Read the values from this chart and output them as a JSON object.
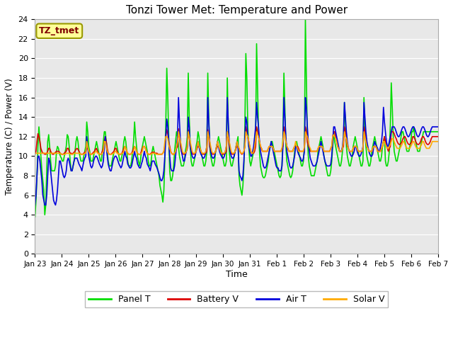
{
  "title": "Tonzi Tower Met: Temperature and Power",
  "xlabel": "Time",
  "ylabel": "Temperature (C) / Power (V)",
  "ylim": [
    0,
    24
  ],
  "yticks": [
    0,
    2,
    4,
    6,
    8,
    10,
    12,
    14,
    16,
    18,
    20,
    22,
    24
  ],
  "xtick_labels": [
    "Jan 23",
    "Jan 24",
    "Jan 25",
    "Jan 26",
    "Jan 27",
    "Jan 28",
    "Jan 29",
    "Jan 30",
    "Jan 31",
    "Feb 1",
    "Feb 2",
    "Feb 3",
    "Feb 4",
    "Feb 5",
    "Feb 6",
    "Feb 7"
  ],
  "bg_color": "#e8e8e8",
  "fig_bg": "#ffffff",
  "grid_color": "#ffffff",
  "legend_label": "TZ_tmet",
  "legend_box_color": "#ffff99",
  "legend_text_color": "#800000",
  "series": {
    "panel_t": {
      "color": "#00dd00",
      "label": "Panel T",
      "linewidth": 1.2
    },
    "battery_v": {
      "color": "#dd0000",
      "label": "Battery V",
      "linewidth": 1.2
    },
    "air_t": {
      "color": "#0000dd",
      "label": "Air T",
      "linewidth": 1.2
    },
    "solar_v": {
      "color": "#ffaa00",
      "label": "Solar V",
      "linewidth": 1.2
    }
  },
  "panel_t": [
    3.8,
    5.5,
    8.0,
    11.0,
    13.0,
    11.5,
    10.0,
    8.5,
    7.5,
    6.5,
    4.0,
    5.0,
    8.5,
    11.5,
    12.2,
    11.0,
    9.5,
    8.5,
    8.5,
    8.5,
    8.5,
    9.0,
    10.5,
    11.0,
    10.8,
    10.3,
    10.0,
    9.8,
    9.5,
    9.5,
    10.0,
    10.5,
    11.0,
    12.2,
    12.0,
    11.0,
    9.5,
    8.5,
    8.5,
    9.0,
    9.5,
    10.5,
    11.5,
    12.0,
    11.5,
    10.5,
    10.0,
    9.5,
    9.5,
    9.5,
    10.0,
    10.5,
    11.0,
    13.5,
    12.5,
    11.0,
    10.5,
    9.5,
    9.5,
    9.5,
    10.0,
    10.5,
    11.0,
    11.5,
    11.0,
    10.5,
    10.0,
    9.5,
    9.5,
    10.5,
    11.5,
    12.5,
    12.5,
    11.5,
    10.5,
    9.5,
    9.0,
    9.0,
    9.0,
    9.5,
    10.0,
    10.5,
    11.0,
    11.5,
    11.0,
    10.5,
    10.0,
    9.5,
    9.5,
    10.0,
    10.5,
    11.5,
    12.0,
    11.5,
    10.5,
    9.5,
    9.0,
    9.0,
    9.0,
    9.5,
    10.5,
    11.5,
    13.5,
    12.0,
    11.0,
    10.0,
    9.5,
    9.0,
    9.5,
    10.5,
    11.0,
    11.5,
    12.0,
    11.5,
    11.0,
    10.5,
    9.5,
    9.0,
    9.0,
    9.5,
    10.5,
    11.0,
    10.5,
    10.0,
    9.5,
    9.0,
    8.5,
    8.0,
    7.0,
    6.5,
    6.0,
    5.3,
    6.5,
    9.5,
    13.5,
    19.0,
    16.0,
    12.0,
    8.5,
    7.5,
    7.5,
    8.0,
    9.0,
    10.5,
    11.5,
    12.5,
    12.0,
    11.0,
    10.0,
    9.5,
    9.0,
    9.0,
    9.0,
    9.5,
    10.5,
    11.0,
    12.0,
    18.5,
    14.0,
    11.0,
    9.5,
    9.0,
    9.0,
    9.5,
    10.0,
    11.0,
    11.5,
    12.5,
    12.0,
    11.0,
    10.5,
    10.0,
    9.5,
    9.0,
    9.0,
    9.5,
    10.5,
    18.5,
    14.0,
    11.0,
    10.0,
    9.5,
    9.0,
    9.0,
    9.5,
    10.5,
    11.0,
    11.5,
    12.0,
    11.5,
    11.0,
    10.5,
    10.0,
    9.5,
    9.0,
    9.0,
    9.5,
    18.0,
    13.0,
    10.5,
    9.5,
    9.0,
    9.0,
    9.5,
    10.0,
    10.5,
    11.0,
    11.5,
    12.0,
    8.0,
    7.0,
    6.5,
    6.0,
    7.0,
    9.0,
    13.0,
    20.5,
    18.0,
    13.0,
    11.0,
    9.5,
    9.0,
    9.5,
    10.0,
    10.5,
    11.5,
    12.0,
    21.5,
    17.0,
    12.5,
    10.5,
    9.0,
    8.5,
    8.0,
    7.8,
    7.8,
    8.0,
    8.5,
    9.0,
    9.5,
    10.5,
    11.0,
    11.5,
    11.5,
    11.0,
    10.5,
    10.0,
    9.5,
    9.0,
    8.5,
    8.0,
    7.8,
    8.0,
    9.0,
    12.0,
    18.5,
    15.0,
    11.0,
    9.5,
    9.0,
    8.5,
    8.0,
    7.8,
    8.0,
    8.5,
    9.5,
    10.5,
    11.0,
    11.5,
    11.0,
    10.5,
    10.0,
    9.5,
    9.0,
    9.0,
    9.5,
    11.0,
    24.0,
    18.0,
    12.0,
    10.0,
    9.0,
    8.5,
    8.0,
    8.0,
    8.0,
    8.0,
    8.5,
    9.0,
    9.5,
    10.5,
    11.0,
    11.5,
    12.0,
    11.5,
    11.0,
    10.0,
    9.5,
    9.0,
    8.5,
    8.0,
    8.0,
    8.0,
    8.5,
    9.5,
    11.0,
    12.5,
    11.5,
    11.0,
    10.5,
    10.0,
    9.5,
    9.0,
    9.0,
    9.5,
    10.5,
    11.5,
    15.5,
    13.5,
    11.0,
    10.0,
    9.5,
    9.0,
    9.0,
    9.5,
    10.0,
    11.0,
    11.5,
    12.0,
    11.5,
    11.0,
    10.5,
    10.0,
    9.5,
    9.0,
    9.0,
    9.5,
    16.0,
    13.0,
    11.0,
    10.0,
    9.5,
    9.0,
    9.0,
    9.5,
    10.5,
    11.0,
    11.5,
    12.0,
    11.5,
    11.0,
    10.5,
    10.0,
    9.5,
    9.5,
    10.0,
    11.0,
    11.5,
    12.0,
    9.5,
    9.0,
    9.0,
    9.5,
    10.5,
    13.0,
    17.5,
    15.0,
    12.0,
    10.5,
    10.0,
    9.5,
    9.5,
    10.0,
    10.5,
    11.0,
    12.0,
    12.5,
    12.5,
    12.0,
    11.5,
    11.0,
    10.5,
    10.5,
    10.5,
    11.0,
    11.5,
    12.5,
    12.5,
    13.0,
    12.0,
    11.5,
    11.0,
    10.5,
    10.5,
    10.5,
    11.0,
    11.5,
    12.0,
    12.5,
    12.5,
    12.5,
    12.5,
    12.5,
    12.5,
    12.5,
    12.5,
    12.5,
    12.5,
    12.5,
    12.5,
    12.5,
    12.5,
    12.5,
    12.5
  ],
  "battery_v": [
    10.2,
    10.5,
    11.5,
    12.3,
    12.0,
    11.5,
    10.8,
    10.5,
    10.3,
    10.3,
    10.2,
    10.2,
    10.3,
    10.5,
    10.8,
    10.8,
    10.5,
    10.3,
    10.2,
    10.2,
    10.3,
    10.4,
    10.5,
    10.5,
    10.5,
    10.4,
    10.3,
    10.2,
    10.2,
    10.2,
    10.3,
    10.4,
    10.5,
    10.8,
    10.8,
    10.5,
    10.3,
    10.3,
    10.2,
    10.3,
    10.4,
    10.5,
    10.7,
    10.8,
    10.7,
    10.5,
    10.3,
    10.2,
    10.2,
    10.2,
    10.3,
    10.4,
    10.5,
    10.8,
    10.8,
    10.5,
    10.3,
    10.2,
    10.2,
    10.3,
    10.4,
    10.5,
    10.7,
    10.8,
    10.5,
    10.3,
    10.2,
    10.2,
    10.2,
    10.5,
    10.8,
    11.5,
    12.0,
    11.5,
    10.8,
    10.3,
    10.2,
    10.2,
    10.2,
    10.3,
    10.4,
    10.5,
    10.8,
    10.8,
    10.5,
    10.3,
    10.2,
    10.2,
    10.2,
    10.3,
    10.5,
    10.8,
    11.0,
    10.8,
    10.5,
    10.3,
    10.2,
    10.2,
    10.2,
    10.3,
    10.5,
    10.8,
    11.0,
    10.8,
    10.5,
    10.3,
    10.2,
    10.2,
    10.2,
    10.5,
    10.8,
    11.0,
    11.0,
    10.8,
    10.5,
    10.3,
    10.2,
    10.2,
    10.2,
    10.3,
    10.4,
    10.4,
    10.4,
    10.3,
    10.3,
    10.3,
    10.2,
    10.2,
    10.2,
    10.2,
    10.2,
    10.3,
    10.5,
    11.0,
    12.1,
    12.7,
    12.3,
    11.5,
    11.0,
    10.5,
    10.3,
    10.2,
    10.2,
    10.3,
    10.5,
    10.8,
    11.0,
    12.8,
    12.0,
    11.0,
    10.5,
    10.3,
    10.2,
    10.2,
    10.3,
    10.5,
    10.8,
    12.7,
    12.0,
    11.0,
    10.5,
    10.3,
    10.2,
    10.2,
    10.3,
    10.5,
    10.8,
    11.0,
    11.0,
    10.8,
    10.5,
    10.3,
    10.2,
    10.2,
    10.2,
    10.3,
    10.5,
    12.7,
    12.0,
    11.0,
    10.5,
    10.3,
    10.2,
    10.2,
    10.3,
    10.5,
    10.8,
    11.0,
    11.0,
    10.8,
    10.5,
    10.3,
    10.2,
    10.2,
    10.2,
    10.3,
    10.5,
    12.5,
    12.0,
    11.0,
    10.5,
    10.3,
    10.2,
    10.2,
    10.3,
    10.5,
    10.8,
    11.0,
    11.0,
    10.8,
    10.5,
    10.3,
    10.2,
    10.3,
    10.5,
    11.0,
    13.0,
    12.5,
    12.0,
    11.5,
    11.0,
    10.5,
    10.3,
    10.3,
    10.3,
    10.5,
    11.0,
    13.0,
    12.5,
    12.0,
    11.5,
    11.0,
    10.8,
    10.5,
    10.5,
    10.5,
    10.5,
    10.5,
    10.5,
    10.8,
    11.0,
    11.0,
    11.0,
    11.0,
    10.8,
    10.5,
    10.5,
    10.5,
    10.5,
    10.5,
    10.5,
    10.5,
    10.5,
    10.8,
    11.0,
    13.0,
    12.5,
    11.5,
    11.0,
    10.8,
    10.5,
    10.5,
    10.5,
    10.5,
    10.5,
    10.8,
    11.0,
    11.0,
    11.0,
    11.0,
    10.8,
    10.5,
    10.5,
    10.5,
    10.5,
    10.5,
    10.8,
    13.0,
    12.5,
    11.5,
    11.0,
    10.8,
    10.5,
    10.5,
    10.5,
    10.5,
    10.5,
    10.5,
    10.5,
    10.5,
    10.8,
    11.0,
    11.0,
    11.0,
    11.0,
    10.8,
    10.5,
    10.5,
    10.5,
    10.5,
    10.5,
    10.5,
    10.5,
    10.8,
    11.0,
    12.0,
    12.5,
    12.5,
    12.0,
    11.5,
    11.0,
    10.8,
    10.5,
    10.5,
    10.5,
    10.8,
    11.0,
    13.0,
    12.5,
    11.5,
    11.0,
    10.8,
    10.5,
    10.5,
    10.5,
    10.5,
    10.8,
    11.0,
    11.0,
    11.0,
    10.8,
    10.5,
    10.5,
    10.5,
    10.5,
    10.5,
    10.8,
    13.0,
    12.5,
    11.5,
    11.0,
    10.8,
    10.5,
    10.5,
    10.5,
    10.5,
    10.8,
    11.0,
    11.0,
    11.0,
    10.8,
    10.5,
    10.5,
    10.5,
    10.5,
    10.8,
    11.0,
    11.5,
    12.0,
    11.5,
    11.0,
    10.8,
    10.5,
    10.8,
    11.0,
    12.5,
    12.5,
    12.5,
    12.3,
    12.0,
    11.8,
    11.5,
    11.3,
    11.2,
    11.2,
    11.3,
    11.5,
    11.8,
    12.0,
    12.0,
    11.8,
    11.5,
    11.3,
    11.2,
    11.2,
    11.3,
    11.5,
    12.0,
    12.0,
    11.8,
    11.5,
    11.3,
    11.2,
    11.2,
    11.3,
    11.5,
    11.8,
    12.0,
    12.0,
    11.8,
    11.5,
    11.3,
    11.2,
    11.2,
    11.3,
    11.5,
    11.8,
    12.0,
    12.0,
    12.0,
    12.0,
    12.0,
    12.0,
    12.0
  ],
  "air_t": [
    5.0,
    6.0,
    8.0,
    10.0,
    10.0,
    9.5,
    8.5,
    7.5,
    6.0,
    5.5,
    5.0,
    5.0,
    6.0,
    8.0,
    9.8,
    9.5,
    8.5,
    7.5,
    6.5,
    5.5,
    5.2,
    5.0,
    5.5,
    6.5,
    8.0,
    9.5,
    9.5,
    9.0,
    8.5,
    8.0,
    7.8,
    8.0,
    8.5,
    9.5,
    9.8,
    9.5,
    9.0,
    8.5,
    8.5,
    9.0,
    9.5,
    9.8,
    9.8,
    9.8,
    9.5,
    9.2,
    9.0,
    8.8,
    8.5,
    9.0,
    9.5,
    9.8,
    10.0,
    12.0,
    11.0,
    10.0,
    9.5,
    9.0,
    8.8,
    9.0,
    9.5,
    9.8,
    10.0,
    10.0,
    9.8,
    9.5,
    9.2,
    9.0,
    8.8,
    9.0,
    9.5,
    11.0,
    12.0,
    11.0,
    10.0,
    9.2,
    8.8,
    8.5,
    8.5,
    9.0,
    9.5,
    9.8,
    10.0,
    10.0,
    9.8,
    9.5,
    9.2,
    9.0,
    8.8,
    9.0,
    9.5,
    10.0,
    10.5,
    10.0,
    9.8,
    9.2,
    9.0,
    8.8,
    8.8,
    9.0,
    9.5,
    10.0,
    10.5,
    10.0,
    9.8,
    9.2,
    9.0,
    8.8,
    8.8,
    9.2,
    9.5,
    10.0,
    10.5,
    10.0,
    9.8,
    9.2,
    9.0,
    8.8,
    8.5,
    9.0,
    9.5,
    9.5,
    9.5,
    9.2,
    9.0,
    8.8,
    8.5,
    8.2,
    7.8,
    7.5,
    7.5,
    7.8,
    8.5,
    10.0,
    12.0,
    13.8,
    13.0,
    11.5,
    10.0,
    8.8,
    8.5,
    8.5,
    8.5,
    9.0,
    10.0,
    11.0,
    12.0,
    16.0,
    13.5,
    11.5,
    10.5,
    10.0,
    9.5,
    9.5,
    10.0,
    10.5,
    11.0,
    14.0,
    13.0,
    11.0,
    10.5,
    10.0,
    9.8,
    9.8,
    10.0,
    10.5,
    11.0,
    11.5,
    11.0,
    10.5,
    10.2,
    10.0,
    9.8,
    9.8,
    10.0,
    10.5,
    11.0,
    16.0,
    13.5,
    11.5,
    10.5,
    10.0,
    9.8,
    9.8,
    10.0,
    10.5,
    11.0,
    11.5,
    11.0,
    10.5,
    10.2,
    10.0,
    9.8,
    9.8,
    10.0,
    10.5,
    11.0,
    16.0,
    13.5,
    11.5,
    10.5,
    10.0,
    9.8,
    9.8,
    10.0,
    10.5,
    11.0,
    11.5,
    11.0,
    8.5,
    8.0,
    7.8,
    7.5,
    8.0,
    9.5,
    12.0,
    14.0,
    13.5,
    12.0,
    11.0,
    10.5,
    10.0,
    10.0,
    10.5,
    11.0,
    12.0,
    13.0,
    15.5,
    14.0,
    13.0,
    11.5,
    10.5,
    10.0,
    9.5,
    9.0,
    8.8,
    8.8,
    9.0,
    9.5,
    10.0,
    10.5,
    11.0,
    11.5,
    11.0,
    10.5,
    10.0,
    9.5,
    9.0,
    8.8,
    8.8,
    8.5,
    8.5,
    8.5,
    9.0,
    11.0,
    16.0,
    14.0,
    12.0,
    10.5,
    10.0,
    9.5,
    9.0,
    8.8,
    8.8,
    9.0,
    9.5,
    10.0,
    11.0,
    11.0,
    10.5,
    10.2,
    10.0,
    9.8,
    9.5,
    9.5,
    9.8,
    10.5,
    16.0,
    15.0,
    13.0,
    11.5,
    10.5,
    9.8,
    9.5,
    9.2,
    9.0,
    9.0,
    9.0,
    9.2,
    9.5,
    10.0,
    10.5,
    11.0,
    11.5,
    11.0,
    10.5,
    10.0,
    9.5,
    9.2,
    9.0,
    9.0,
    9.0,
    9.0,
    9.2,
    10.0,
    11.5,
    13.0,
    13.0,
    12.5,
    12.0,
    11.5,
    11.0,
    10.5,
    10.5,
    10.5,
    11.0,
    12.0,
    15.5,
    14.0,
    12.5,
    11.5,
    10.8,
    10.5,
    10.2,
    10.0,
    10.0,
    10.2,
    10.5,
    11.0,
    11.0,
    10.5,
    10.2,
    10.0,
    10.0,
    10.2,
    10.5,
    11.0,
    15.5,
    14.0,
    12.5,
    11.5,
    11.0,
    10.5,
    10.2,
    10.0,
    10.0,
    10.2,
    11.0,
    11.5,
    11.2,
    11.0,
    10.8,
    10.5,
    10.5,
    11.0,
    11.5,
    12.5,
    15.0,
    13.5,
    12.5,
    11.5,
    11.0,
    11.0,
    11.5,
    12.0,
    12.5,
    13.0,
    13.0,
    13.0,
    12.8,
    12.5,
    12.2,
    12.0,
    12.0,
    12.2,
    12.5,
    12.8,
    13.0,
    13.0,
    12.8,
    12.5,
    12.2,
    12.0,
    12.0,
    12.2,
    12.5,
    12.8,
    13.0,
    13.0,
    12.8,
    12.5,
    12.2,
    12.0,
    12.0,
    12.2,
    12.5,
    12.8,
    13.0,
    13.0,
    12.8,
    12.5,
    12.2,
    12.0,
    12.0,
    12.2,
    12.5,
    12.8,
    13.0,
    13.0,
    13.0,
    13.0,
    13.0,
    13.0,
    13.0
  ],
  "solar_v": [
    10.3,
    10.3,
    10.3,
    10.3,
    10.3,
    10.3,
    10.3,
    10.3,
    10.3,
    10.3,
    10.3,
    10.3,
    10.3,
    10.3,
    10.3,
    10.3,
    10.3,
    10.3,
    10.3,
    10.3,
    10.3,
    10.3,
    10.3,
    10.3,
    10.3,
    10.3,
    10.3,
    10.2,
    10.2,
    10.2,
    10.2,
    10.2,
    10.3,
    10.3,
    10.3,
    10.3,
    10.2,
    10.2,
    10.2,
    10.2,
    10.3,
    10.3,
    10.3,
    10.3,
    10.3,
    10.3,
    10.3,
    10.2,
    10.2,
    10.2,
    10.2,
    10.3,
    10.3,
    11.5,
    11.0,
    10.5,
    10.3,
    10.2,
    10.2,
    10.2,
    10.3,
    10.3,
    10.5,
    10.5,
    10.3,
    10.3,
    10.2,
    10.2,
    10.2,
    10.3,
    10.5,
    11.5,
    11.5,
    11.0,
    10.5,
    10.3,
    10.2,
    10.2,
    10.2,
    10.2,
    10.3,
    10.3,
    10.5,
    10.5,
    10.3,
    10.3,
    10.2,
    10.2,
    10.2,
    10.3,
    10.3,
    10.5,
    11.0,
    10.8,
    10.5,
    10.3,
    10.2,
    10.2,
    10.2,
    10.3,
    10.3,
    10.5,
    11.0,
    10.8,
    10.5,
    10.3,
    10.2,
    10.2,
    10.2,
    10.3,
    10.5,
    11.0,
    11.0,
    10.8,
    10.5,
    10.3,
    10.2,
    10.2,
    10.2,
    10.2,
    10.3,
    10.3,
    10.3,
    10.3,
    10.2,
    10.2,
    10.2,
    10.2,
    10.2,
    10.2,
    10.2,
    10.3,
    10.5,
    11.5,
    12.0,
    12.0,
    11.8,
    11.2,
    10.8,
    10.5,
    10.3,
    10.2,
    10.2,
    10.3,
    10.5,
    11.0,
    11.5,
    12.5,
    12.0,
    11.5,
    11.0,
    10.5,
    10.3,
    10.3,
    10.3,
    10.5,
    11.0,
    12.5,
    12.0,
    11.5,
    11.0,
    10.5,
    10.3,
    10.3,
    10.3,
    10.5,
    11.0,
    11.5,
    11.0,
    10.8,
    10.5,
    10.3,
    10.3,
    10.3,
    10.3,
    10.5,
    11.0,
    12.5,
    12.0,
    11.5,
    11.0,
    10.5,
    10.3,
    10.3,
    10.3,
    10.5,
    11.0,
    11.5,
    11.0,
    10.8,
    10.5,
    10.3,
    10.3,
    10.3,
    10.3,
    10.5,
    11.0,
    12.5,
    12.0,
    11.5,
    11.0,
    10.5,
    10.3,
    10.3,
    10.3,
    10.5,
    11.0,
    11.5,
    11.0,
    10.8,
    10.5,
    10.3,
    10.3,
    10.3,
    10.5,
    11.0,
    12.5,
    12.2,
    12.0,
    11.5,
    11.0,
    10.5,
    10.3,
    10.3,
    10.5,
    11.0,
    11.8,
    12.5,
    12.2,
    12.0,
    11.5,
    11.0,
    10.8,
    10.5,
    10.5,
    10.5,
    10.5,
    10.5,
    10.5,
    10.8,
    11.0,
    11.0,
    11.0,
    11.0,
    10.8,
    10.5,
    10.5,
    10.5,
    10.5,
    10.5,
    10.5,
    10.5,
    10.5,
    10.8,
    11.5,
    12.5,
    12.2,
    11.5,
    11.0,
    10.8,
    10.5,
    10.5,
    10.5,
    10.5,
    10.5,
    10.8,
    11.0,
    11.5,
    11.0,
    10.8,
    10.5,
    10.5,
    10.5,
    10.5,
    10.5,
    10.5,
    11.0,
    12.5,
    12.2,
    12.0,
    11.5,
    11.0,
    10.8,
    10.5,
    10.5,
    10.5,
    10.5,
    10.5,
    10.5,
    10.5,
    10.8,
    11.0,
    11.0,
    11.0,
    11.0,
    10.8,
    10.5,
    10.5,
    10.5,
    10.5,
    10.5,
    10.5,
    10.5,
    10.8,
    11.0,
    12.0,
    12.2,
    12.0,
    11.8,
    11.5,
    11.0,
    10.8,
    10.5,
    10.5,
    10.5,
    10.8,
    11.5,
    12.5,
    12.0,
    11.8,
    11.2,
    10.8,
    10.5,
    10.5,
    10.5,
    10.5,
    10.8,
    11.0,
    11.0,
    11.0,
    10.8,
    10.5,
    10.5,
    10.5,
    10.5,
    10.5,
    10.8,
    12.5,
    12.0,
    11.5,
    11.0,
    10.8,
    10.5,
    10.5,
    10.5,
    10.5,
    10.8,
    11.0,
    11.0,
    11.0,
    10.8,
    10.5,
    10.5,
    10.5,
    10.5,
    10.8,
    11.0,
    11.5,
    11.5,
    11.2,
    11.0,
    10.8,
    10.8,
    11.0,
    11.2,
    11.5,
    11.8,
    11.8,
    11.5,
    11.2,
    11.0,
    10.8,
    10.8,
    10.8,
    10.8,
    11.0,
    11.2,
    11.5,
    11.5,
    11.2,
    11.0,
    10.8,
    10.8,
    10.8,
    10.8,
    11.0,
    11.2,
    11.5,
    11.5,
    11.2,
    11.0,
    10.8,
    10.8,
    10.8,
    10.8,
    11.0,
    11.2,
    11.5,
    11.5,
    11.2,
    11.0,
    10.8,
    10.8,
    10.8,
    10.8,
    11.0,
    11.2,
    11.5,
    11.5,
    11.5,
    11.5,
    11.5,
    11.5,
    11.5
  ]
}
